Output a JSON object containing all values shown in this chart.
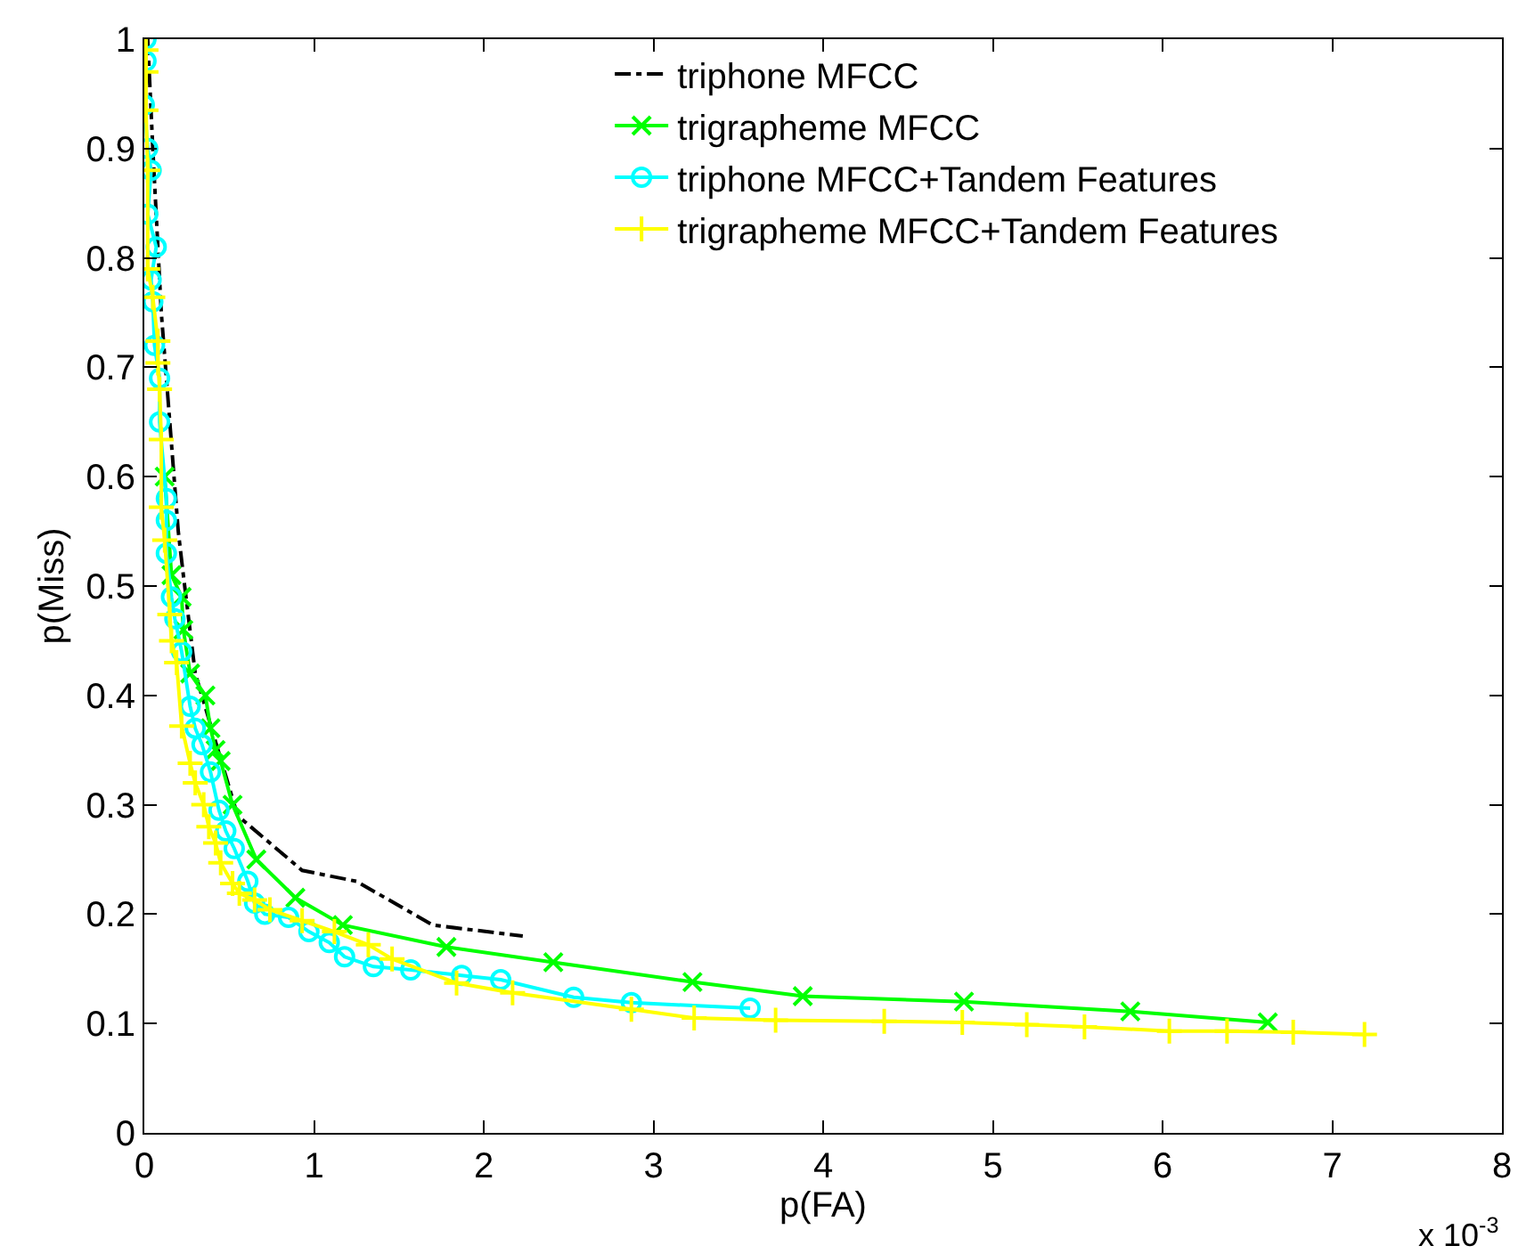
{
  "chart_data": {
    "type": "line",
    "xlabel": "p(FA)",
    "ylabel": "p(Miss)",
    "xlim": [
      0,
      8
    ],
    "ylim": [
      0,
      1
    ],
    "xticks": [
      0,
      1,
      2,
      3,
      4,
      5,
      6,
      7,
      8
    ],
    "yticks": [
      0,
      0.1,
      0.2,
      0.3,
      0.4,
      0.5,
      0.6,
      0.7,
      0.8,
      0.9,
      1
    ],
    "grid": false,
    "legend": "top right",
    "annotations": [
      "x 10$^{-3}$"
    ],
    "series": [
      {
        "name": "triphone MFCC",
        "color": "#000000",
        "marker": "none",
        "line_style": "dashdot",
        "x": [
          0.02,
          0.05,
          0.1,
          0.15,
          0.2,
          0.23,
          0.3,
          0.55,
          0.93,
          1.25,
          1.7,
          2.23
        ],
        "values": [
          1.0,
          0.9,
          0.75,
          0.65,
          0.55,
          0.51,
          0.42,
          0.29,
          0.24,
          0.23,
          0.19,
          0.18
        ]
      },
      {
        "name": "trigrapheme MFCC",
        "color": "#00ff00",
        "marker": "x",
        "line_style": "solid",
        "x": [
          0.12,
          0.16,
          0.22,
          0.23,
          0.27,
          0.36,
          0.39,
          0.42,
          0.45,
          0.52,
          0.66,
          0.89,
          1.17,
          1.78,
          2.41,
          3.23,
          3.88,
          4.83,
          5.81,
          6.62
        ],
        "values": [
          0.6,
          0.51,
          0.49,
          0.46,
          0.42,
          0.4,
          0.37,
          0.35,
          0.34,
          0.3,
          0.25,
          0.215,
          0.19,
          0.17,
          0.156,
          0.138,
          0.125,
          0.12,
          0.111,
          0.101
        ]
      },
      {
        "name": "triphone MFCC+Tandem Features",
        "color": "#00ffff",
        "marker": "circle",
        "line_style": "solid",
        "x": [
          0.01,
          0.01,
          0.0,
          0.02,
          0.04,
          0.02,
          0.07,
          0.04,
          0.05,
          0.06,
          0.09,
          0.09,
          0.13,
          0.13,
          0.13,
          0.16,
          0.18,
          0.22,
          0.27,
          0.3,
          0.34,
          0.39,
          0.44,
          0.48,
          0.53,
          0.61,
          0.65,
          0.71,
          0.85,
          0.97,
          1.09,
          1.18,
          1.35,
          1.57,
          1.87,
          2.1,
          2.53,
          2.87,
          3.57
        ],
        "values": [
          1.0,
          0.98,
          0.94,
          0.9,
          0.88,
          0.84,
          0.81,
          0.78,
          0.76,
          0.72,
          0.69,
          0.65,
          0.58,
          0.56,
          0.53,
          0.49,
          0.47,
          0.44,
          0.39,
          0.37,
          0.355,
          0.33,
          0.295,
          0.276,
          0.26,
          0.23,
          0.21,
          0.2,
          0.197,
          0.184,
          0.174,
          0.161,
          0.152,
          0.149,
          0.144,
          0.14,
          0.124,
          0.119,
          0.114
        ]
      },
      {
        "name": "trigrapheme MFCC+Tandem Features",
        "color": "#ffff00",
        "marker": "cross",
        "line_style": "solid",
        "x": [
          0.01,
          0.01,
          0.01,
          0.02,
          0.02,
          0.05,
          0.08,
          0.08,
          0.09,
          0.1,
          0.1,
          0.12,
          0.15,
          0.16,
          0.19,
          0.22,
          0.27,
          0.3,
          0.35,
          0.38,
          0.42,
          0.45,
          0.52,
          0.56,
          0.65,
          0.74,
          0.93,
          1.12,
          1.32,
          1.46,
          1.84,
          2.17,
          2.87,
          3.24,
          3.72,
          4.36,
          4.82,
          5.2,
          5.54,
          6.04,
          6.38,
          6.77,
          7.19
        ],
        "values": [
          0.99,
          0.97,
          0.935,
          0.88,
          0.79,
          0.764,
          0.724,
          0.704,
          0.68,
          0.634,
          0.572,
          0.542,
          0.474,
          0.45,
          0.43,
          0.372,
          0.338,
          0.32,
          0.3,
          0.28,
          0.265,
          0.247,
          0.228,
          0.219,
          0.213,
          0.204,
          0.194,
          0.184,
          0.172,
          0.159,
          0.137,
          0.128,
          0.113,
          0.105,
          0.103,
          0.102,
          0.101,
          0.099,
          0.097,
          0.093,
          0.093,
          0.092,
          0.09
        ]
      }
    ]
  }
}
